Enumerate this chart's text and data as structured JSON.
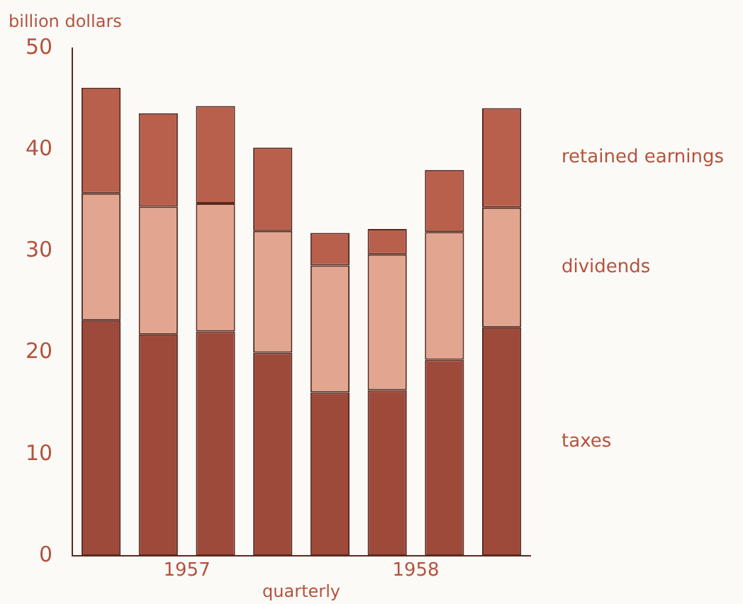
{
  "chart_data": {
    "type": "bar",
    "stacked": true,
    "ylabel": "billion dollars",
    "xlabel": "quarterly",
    "categories": [
      null,
      null,
      null,
      null,
      null,
      null,
      null,
      null
    ],
    "series": [
      {
        "name": "taxes",
        "color": "#9e4a3a",
        "values": [
          23.2,
          21.8,
          22.1,
          20.0,
          16.1,
          16.3,
          19.3,
          22.5
        ]
      },
      {
        "name": "dividends",
        "color": "#e2a690",
        "values": [
          12.5,
          12.6,
          12.6,
          12.0,
          12.5,
          13.4,
          12.6,
          11.8
        ]
      },
      {
        "name": "retained earnings",
        "color": "#b8604c",
        "values": [
          10.4,
          9.2,
          9.6,
          8.2,
          3.2,
          2.5,
          6.1,
          9.8
        ]
      }
    ],
    "ylim": [
      0,
      50
    ],
    "yticks": [
      0,
      10,
      20,
      30,
      40,
      50
    ],
    "grid": false,
    "legend": false,
    "annotations": [
      "1957",
      "1958"
    ]
  }
}
